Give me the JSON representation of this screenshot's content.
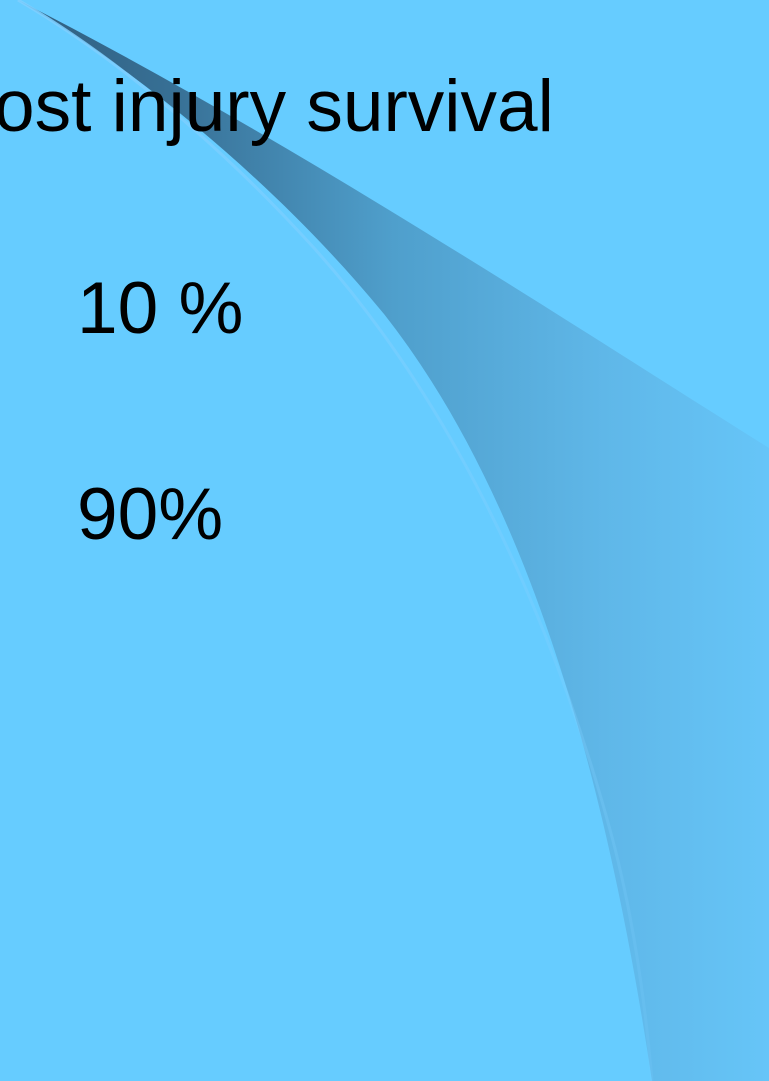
{
  "slide": {
    "title": "ost injury survival",
    "values": [
      "10 %",
      "90%"
    ]
  },
  "colors": {
    "background": "#66ccff",
    "swoosh_dark": "#2f5f80",
    "swoosh_mid": "#4f9fcc",
    "swoosh_light": "#62bdf0",
    "text": "#000000"
  }
}
